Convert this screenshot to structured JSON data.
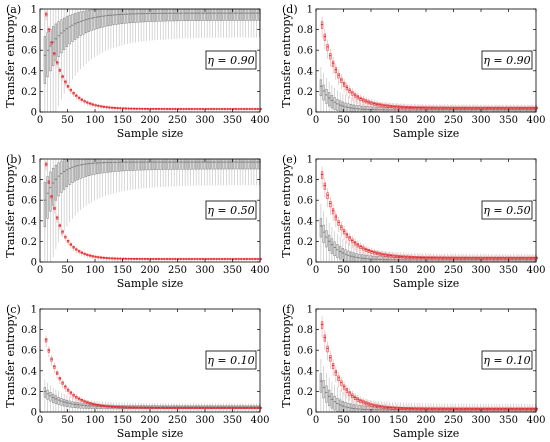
{
  "colors": {
    "red": "#e3262b",
    "pink": "#f4a6a6",
    "gray": "#7a7a7a",
    "lightgray": "#bdbdbd",
    "axis": "#000000"
  },
  "chart_data": [
    {
      "type": "box",
      "panel_label": "(a)",
      "annotation": "η = 0.90",
      "xlabel": "Sample size",
      "ylabel": "Transfer entropy",
      "xlim": [
        0,
        400
      ],
      "ylim": [
        0,
        1
      ],
      "xticks": [
        0,
        50,
        100,
        150,
        200,
        250,
        300,
        350,
        400
      ],
      "yticks": [
        0,
        0.2,
        0.4,
        0.6,
        0.8,
        1
      ],
      "sample_size_range": [
        10,
        400
      ],
      "series": [
        {
          "color": "gray",
          "median": {
            "start": 0.55,
            "end": 0.96,
            "rate": 40,
            "kind": "rise"
          },
          "spread": 0.9
        },
        {
          "color": "red",
          "median": {
            "start": 0.95,
            "end": 0.03,
            "rate": 28,
            "kind": "decay"
          },
          "spread": 0.05
        }
      ]
    },
    {
      "type": "box",
      "panel_label": "(b)",
      "annotation": "η = 0.50",
      "xlabel": "Sample size",
      "ylabel": "Transfer entropy",
      "xlim": [
        0,
        400
      ],
      "ylim": [
        0,
        1
      ],
      "xticks": [
        0,
        50,
        100,
        150,
        200,
        250,
        300,
        350,
        400
      ],
      "yticks": [
        0,
        0.2,
        0.4,
        0.6,
        0.8,
        1
      ],
      "sample_size_range": [
        10,
        400
      ],
      "series": [
        {
          "color": "gray",
          "median": {
            "start": 0.6,
            "end": 0.97,
            "rate": 25,
            "kind": "rise"
          },
          "spread": 0.85
        },
        {
          "color": "red",
          "median": {
            "start": 0.95,
            "end": 0.03,
            "rate": 24,
            "kind": "decay"
          },
          "spread": 0.05
        }
      ]
    },
    {
      "type": "box",
      "panel_label": "(c)",
      "annotation": "η = 0.10",
      "xlabel": "Sample size",
      "ylabel": "Transfer entropy",
      "xlim": [
        0,
        400
      ],
      "ylim": [
        0,
        1
      ],
      "xticks": [
        0,
        50,
        100,
        150,
        200,
        250,
        300,
        350,
        400
      ],
      "yticks": [
        0,
        0.2,
        0.4,
        0.6,
        0.8,
        1
      ],
      "sample_size_range": [
        10,
        400
      ],
      "series": [
        {
          "color": "gray",
          "median": {
            "start": 0.2,
            "end": 0.05,
            "rate": 30,
            "kind": "decay"
          },
          "spread": 0.18
        },
        {
          "color": "red",
          "median": {
            "start": 0.7,
            "end": 0.04,
            "rate": 30,
            "kind": "decay"
          },
          "spread": 0.06
        }
      ]
    },
    {
      "type": "box",
      "panel_label": "(d)",
      "annotation": "η = 0.90",
      "xlabel": "Sample size",
      "ylabel": "Transfer entropy",
      "xlim": [
        0,
        400
      ],
      "ylim": [
        0,
        1
      ],
      "xticks": [
        0,
        50,
        100,
        150,
        200,
        250,
        300,
        350,
        400
      ],
      "yticks": [
        0,
        0.2,
        0.4,
        0.6,
        0.8,
        1
      ],
      "sample_size_range": [
        10,
        400
      ],
      "series": [
        {
          "color": "gray",
          "median": {
            "start": 0.25,
            "end": 0.02,
            "rate": 22,
            "kind": "decay"
          },
          "spread": 0.3
        },
        {
          "color": "red",
          "median": {
            "start": 0.85,
            "end": 0.04,
            "rate": 32,
            "kind": "decay"
          },
          "spread": 0.12
        }
      ]
    },
    {
      "type": "box",
      "panel_label": "(e)",
      "annotation": "η = 0.50",
      "xlabel": "Sample size",
      "ylabel": "Transfer entropy",
      "xlim": [
        0,
        400
      ],
      "ylim": [
        0,
        1
      ],
      "xticks": [
        0,
        50,
        100,
        150,
        200,
        250,
        300,
        350,
        400
      ],
      "yticks": [
        0,
        0.2,
        0.4,
        0.6,
        0.8,
        1
      ],
      "sample_size_range": [
        10,
        400
      ],
      "series": [
        {
          "color": "gray",
          "median": {
            "start": 0.35,
            "end": 0.02,
            "rate": 25,
            "kind": "decay"
          },
          "spread": 0.35
        },
        {
          "color": "red",
          "median": {
            "start": 0.85,
            "end": 0.04,
            "rate": 35,
            "kind": "decay"
          },
          "spread": 0.12
        }
      ]
    },
    {
      "type": "box",
      "panel_label": "(f)",
      "annotation": "η = 0.10",
      "xlabel": "Sample size",
      "ylabel": "Transfer entropy",
      "xlim": [
        0,
        400
      ],
      "ylim": [
        0,
        1
      ],
      "xticks": [
        0,
        50,
        100,
        150,
        200,
        250,
        300,
        350,
        400
      ],
      "yticks": [
        0,
        0.2,
        0.4,
        0.6,
        0.8,
        1
      ],
      "sample_size_range": [
        10,
        400
      ],
      "series": [
        {
          "color": "gray",
          "median": {
            "start": 0.3,
            "end": 0.02,
            "rate": 20,
            "kind": "decay"
          },
          "spread": 0.35
        },
        {
          "color": "red",
          "median": {
            "start": 0.85,
            "end": 0.03,
            "rate": 30,
            "kind": "decay"
          },
          "spread": 0.12
        }
      ]
    }
  ]
}
